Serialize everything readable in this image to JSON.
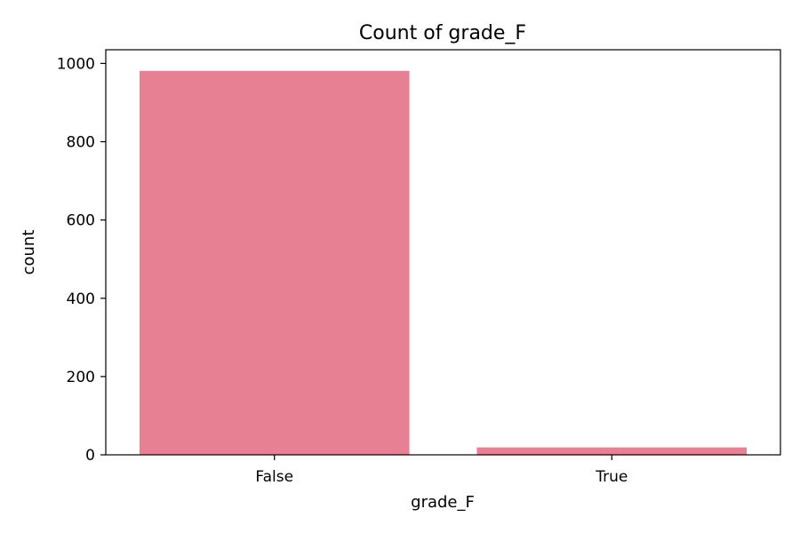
{
  "chart_data": {
    "type": "bar",
    "title": "Count of grade_F",
    "xlabel": "grade_F",
    "ylabel": "count",
    "categories": [
      "False",
      "True"
    ],
    "values": [
      981,
      19
    ],
    "ylim": [
      0,
      1035
    ],
    "yticks": [
      0,
      200,
      400,
      600,
      800,
      1000
    ],
    "grid": false,
    "legend": "none",
    "bar_color": "#e78093"
  }
}
